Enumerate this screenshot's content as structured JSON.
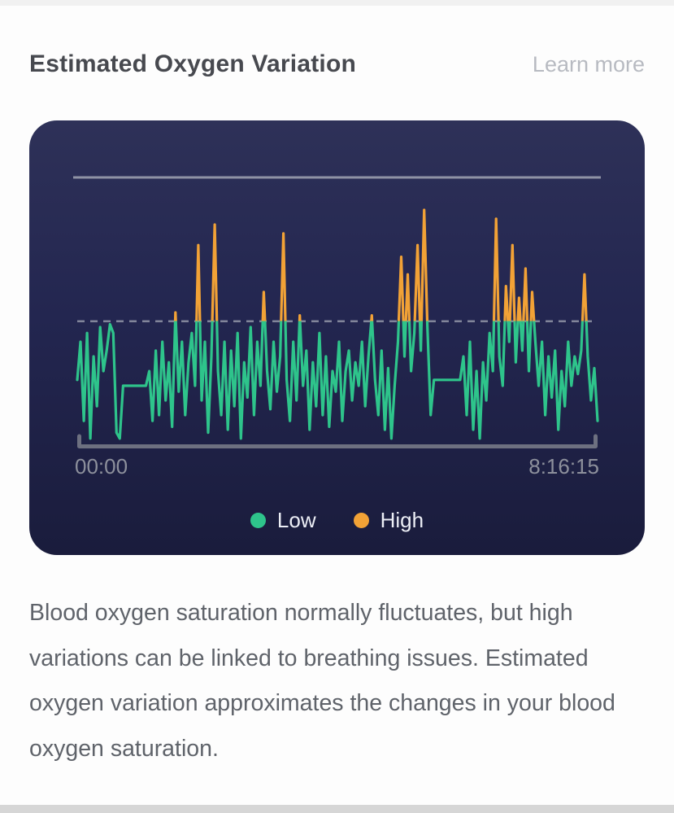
{
  "page": {
    "title": "Estimated Oxygen Variation",
    "learn_more": "Learn more",
    "description": "Blood oxygen saturation normally fluctuates, but high variations can be linked to breathing issues. Estimated oxygen variation approximates the changes in your blood oxygen saturation."
  },
  "colors": {
    "low": "#2ec48b",
    "high": "#f2a236",
    "axis": "#6d7080",
    "grid_line": "#8f93a5",
    "card_background_top": "#2e3158",
    "card_background_bottom": "#1a1c3c"
  },
  "chart_data": {
    "type": "line",
    "title": "Estimated Oxygen Variation",
    "x_start_label": "00:00",
    "x_end_label": "8:16:15",
    "legend": [
      "Low",
      "High"
    ],
    "ylim": [
      0,
      100
    ],
    "threshold": 62,
    "grid": false,
    "legend_position": "bottom-center",
    "values": [
      42,
      55,
      28,
      58,
      22,
      50,
      33,
      60,
      45,
      52,
      61,
      58,
      24,
      22,
      40,
      40,
      40,
      40,
      40,
      40,
      40,
      40,
      45,
      28,
      52,
      30,
      55,
      35,
      48,
      26,
      65,
      38,
      55,
      30,
      48,
      58,
      40,
      88,
      35,
      55,
      24,
      50,
      95,
      45,
      30,
      55,
      25,
      52,
      33,
      58,
      22,
      48,
      36,
      60,
      30,
      55,
      40,
      72,
      45,
      32,
      55,
      38,
      50,
      92,
      42,
      28,
      55,
      35,
      64,
      40,
      52,
      25,
      48,
      33,
      58,
      30,
      50,
      26,
      45,
      38,
      55,
      28,
      45,
      52,
      35,
      48,
      40,
      55,
      33,
      50,
      64,
      42,
      30,
      52,
      25,
      46,
      22,
      40,
      55,
      84,
      50,
      78,
      45,
      58,
      88,
      52,
      100,
      60,
      30,
      42,
      42,
      42,
      42,
      42,
      42,
      42,
      42,
      42,
      50,
      30,
      55,
      25,
      45,
      22,
      48,
      35,
      58,
      45,
      97,
      50,
      40,
      74,
      55,
      88,
      48,
      70,
      52,
      80,
      45,
      72,
      55,
      40,
      55,
      30,
      50,
      36,
      52,
      25,
      45,
      33,
      55,
      40,
      50,
      44,
      52,
      78,
      50,
      35,
      46,
      28
    ]
  }
}
